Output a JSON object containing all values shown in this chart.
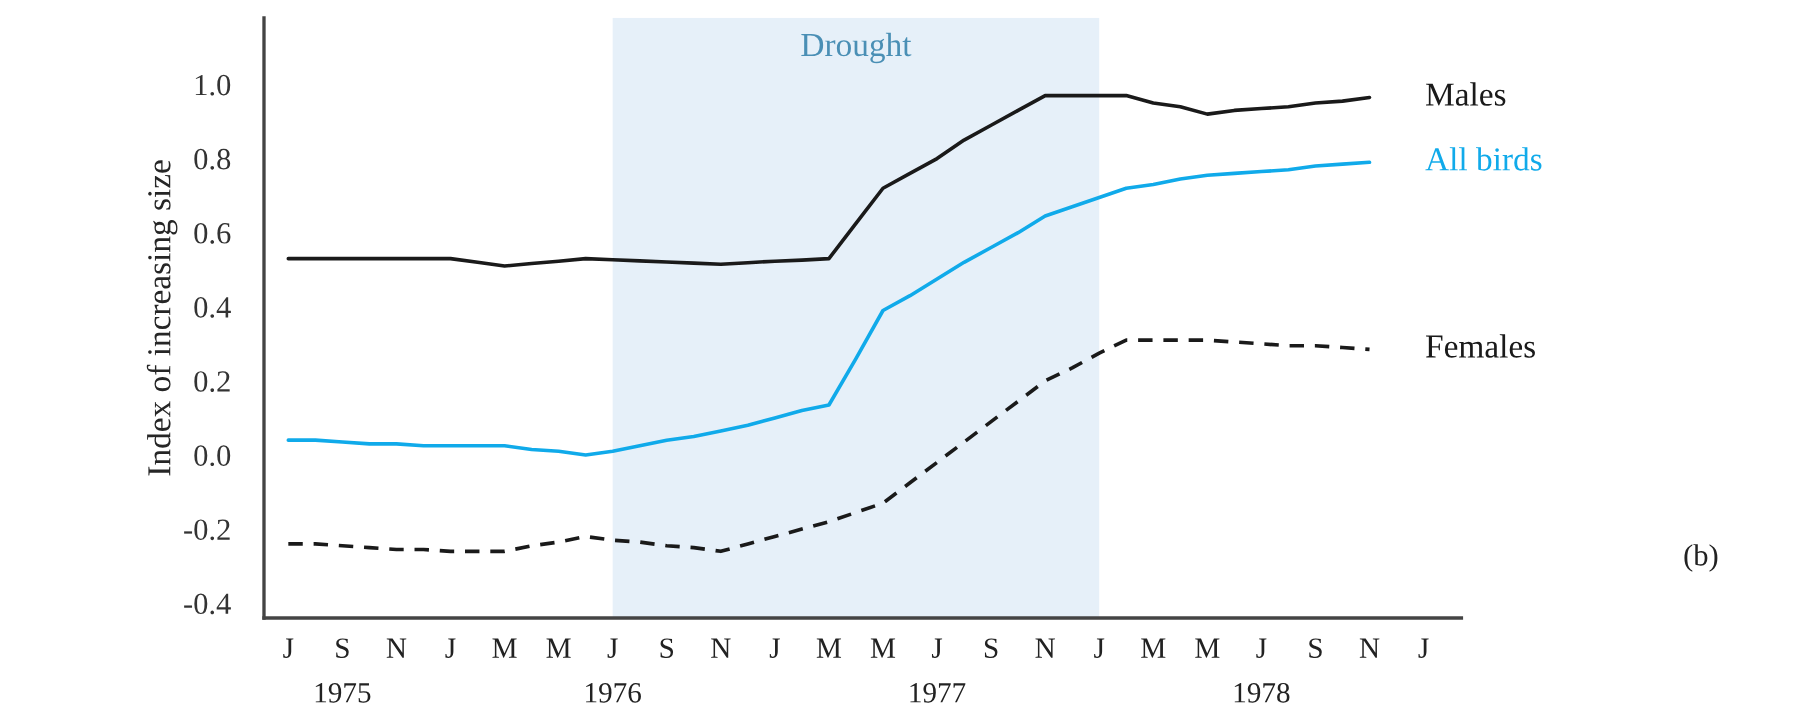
{
  "chart_data": {
    "type": "line",
    "ylabel": "Index of increasing size",
    "categories": [
      "J",
      null,
      "S\n1975",
      null,
      "N",
      null,
      "J",
      null,
      "M",
      null,
      "M",
      null,
      "J\n1976",
      null,
      "S",
      null,
      "N",
      null,
      "J",
      null,
      "M",
      null,
      "M",
      null,
      "J\n1977",
      null,
      "S",
      null,
      "N",
      null,
      "J",
      null,
      "M",
      null,
      "M",
      null,
      "J\n1978",
      null,
      "S",
      null,
      "N",
      null,
      "J"
    ],
    "series": [
      {
        "name": "Males",
        "color": "#1a1a1a",
        "line_style": "solid",
        "values": [
          0.53,
          0.53,
          0.53,
          0.53,
          0.53,
          0.53,
          0.53,
          0.52,
          0.51,
          0.517,
          0.523,
          0.53,
          0.527,
          0.524,
          0.521,
          0.518,
          0.515,
          0.519,
          0.523,
          0.526,
          0.53,
          0.625,
          0.72,
          0.76,
          0.8,
          0.85,
          0.89,
          0.93,
          0.97,
          0.97,
          0.97,
          0.97,
          0.95,
          0.94,
          0.92,
          0.93,
          0.935,
          0.94,
          0.95,
          0.955,
          0.965,
          null,
          null
        ]
      },
      {
        "name": "All birds",
        "color": "#10aaea",
        "line_style": "solid",
        "values": [
          0.04,
          0.04,
          0.035,
          0.03,
          0.03,
          0.025,
          0.025,
          0.025,
          0.025,
          0.015,
          0.01,
          0.0,
          0.01,
          0.025,
          0.04,
          0.05,
          0.065,
          0.08,
          0.1,
          0.12,
          0.135,
          0.26,
          0.39,
          0.43,
          0.475,
          0.52,
          0.56,
          0.6,
          0.645,
          0.67,
          0.695,
          0.72,
          0.73,
          0.745,
          0.755,
          0.76,
          0.765,
          0.77,
          0.78,
          0.785,
          0.79,
          null,
          null
        ]
      },
      {
        "name": "Females",
        "color": "#1a1a1a",
        "line_style": "dashed",
        "values": [
          -0.24,
          -0.24,
          -0.245,
          -0.25,
          -0.255,
          -0.255,
          -0.26,
          -0.26,
          -0.26,
          -0.245,
          -0.235,
          -0.22,
          -0.23,
          -0.235,
          -0.245,
          -0.25,
          -0.26,
          -0.24,
          -0.22,
          -0.2,
          -0.18,
          -0.155,
          -0.13,
          -0.075,
          -0.02,
          0.035,
          0.09,
          0.145,
          0.2,
          0.235,
          0.275,
          0.31,
          0.31,
          0.31,
          0.31,
          0.305,
          0.3,
          0.295,
          0.295,
          0.29,
          0.285,
          null,
          null
        ]
      }
    ],
    "annotations": [
      "Drought",
      "(b)"
    ],
    "ylim": [
      -0.44,
      1.18
    ],
    "yticks": [
      -0.4,
      -0.2,
      {
        "value": 0,
        "label": "0.0"
      },
      0.2,
      0.4,
      0.6,
      0.8,
      {
        "value": 1,
        "label": "1.0"
      }
    ],
    "grid": false,
    "legend": false
  }
}
